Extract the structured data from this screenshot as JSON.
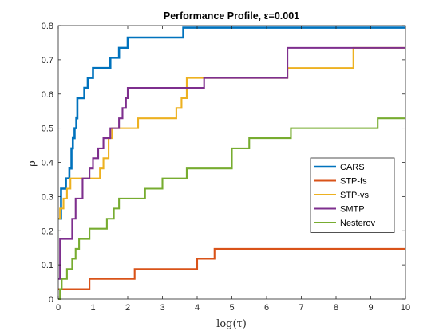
{
  "chart_data": {
    "type": "line",
    "step": true,
    "title": "Performance Profile, ε=0.001",
    "xlabel": "log(τ)",
    "ylabel": "ρ",
    "xlim": [
      0,
      10
    ],
    "ylim": [
      0,
      0.8
    ],
    "xticks": [
      "0",
      "1",
      "2",
      "3",
      "4",
      "5",
      "6",
      "7",
      "8",
      "9",
      "10"
    ],
    "yticks": [
      "0",
      "0.1",
      "0.2",
      "0.3",
      "0.4",
      "0.5",
      "0.6",
      "0.7",
      "0.8"
    ],
    "grid": false,
    "box": true,
    "legend_position": "right",
    "series": [
      {
        "name": "CARS",
        "color": "#0072BD",
        "x": [
          0,
          0.08,
          0.22,
          0.32,
          0.38,
          0.42,
          0.47,
          0.52,
          0.55,
          0.75,
          0.85,
          1.0,
          1.5,
          1.75,
          2.0,
          2.2,
          3.6,
          10
        ],
        "y": [
          0.235,
          0.323,
          0.353,
          0.382,
          0.441,
          0.471,
          0.5,
          0.529,
          0.588,
          0.618,
          0.647,
          0.676,
          0.706,
          0.735,
          0.765,
          0.765,
          0.794,
          0.794
        ]
      },
      {
        "name": "STP-fs",
        "color": "#D95319",
        "x": [
          0,
          0.9,
          2.2,
          4.0,
          4.5,
          10
        ],
        "y": [
          0.029,
          0.059,
          0.088,
          0.118,
          0.147,
          0.147
        ]
      },
      {
        "name": "STP-vs",
        "color": "#EDB120",
        "x": [
          0,
          0.05,
          0.15,
          0.25,
          0.35,
          0.7,
          1.2,
          1.3,
          1.45,
          1.55,
          1.75,
          2.3,
          3.4,
          3.55,
          3.7,
          4.2,
          6.6,
          8.5,
          10
        ],
        "y": [
          0.235,
          0.265,
          0.294,
          0.323,
          0.353,
          0.353,
          0.382,
          0.412,
          0.471,
          0.5,
          0.5,
          0.529,
          0.559,
          0.588,
          0.647,
          0.647,
          0.676,
          0.735,
          0.735
        ]
      },
      {
        "name": "SMTP",
        "color": "#7E2F8E",
        "x": [
          0,
          0.05,
          0.4,
          0.5,
          0.7,
          0.9,
          1.0,
          1.15,
          1.3,
          1.5,
          1.75,
          1.85,
          1.95,
          2.0,
          3.7,
          4.2,
          6.6,
          10
        ],
        "y": [
          0.059,
          0.176,
          0.235,
          0.294,
          0.353,
          0.382,
          0.412,
          0.441,
          0.471,
          0.5,
          0.529,
          0.559,
          0.588,
          0.618,
          0.618,
          0.647,
          0.735,
          0.735
        ]
      },
      {
        "name": "Nesterov",
        "color": "#77AC30",
        "x": [
          0,
          0.05,
          0.1,
          0.25,
          0.4,
          0.5,
          0.6,
          0.9,
          1.0,
          1.4,
          1.6,
          1.75,
          1.8,
          2.5,
          3.0,
          3.4,
          3.7,
          5.0,
          5.5,
          6.7,
          9.2,
          10
        ],
        "y": [
          0.0,
          0.029,
          0.059,
          0.088,
          0.118,
          0.147,
          0.176,
          0.206,
          0.206,
          0.235,
          0.265,
          0.294,
          0.294,
          0.323,
          0.353,
          0.353,
          0.382,
          0.441,
          0.471,
          0.5,
          0.529,
          0.529
        ]
      }
    ]
  }
}
